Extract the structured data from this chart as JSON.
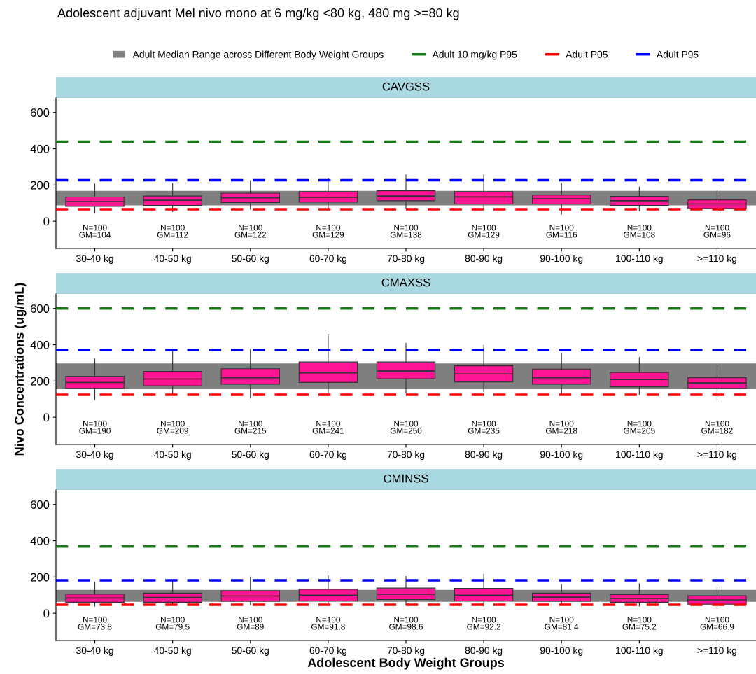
{
  "chart_data": [
    {
      "type": "box",
      "title": "Adolescent adjuvant Mel nivo mono at 6 mg/kg <80 kg, 480 mg >=80 kg",
      "subtitle": "CAVGSS",
      "categories": [
        "30-40 kg",
        "40-50 kg",
        "50-60 kg",
        "60-70 kg",
        "70-80 kg",
        "80-90 kg",
        "90-100 kg",
        "100-110 kg",
        ">=110 kg"
      ],
      "color": "#ff1493",
      "boxes": [
        {
          "low": 47,
          "q1": 82,
          "median": 108,
          "q3": 134,
          "high": 205
        },
        {
          "low": 53,
          "q1": 87,
          "median": 116,
          "q3": 139,
          "high": 208
        },
        {
          "low": 66,
          "q1": 103,
          "median": 129,
          "q3": 155,
          "high": 224
        },
        {
          "low": 66,
          "q1": 105,
          "median": 132,
          "q3": 163,
          "high": 237
        },
        {
          "low": 71,
          "q1": 113,
          "median": 139,
          "q3": 168,
          "high": 255
        },
        {
          "low": 66,
          "q1": 95,
          "median": 134,
          "q3": 163,
          "high": 255
        },
        {
          "low": 39,
          "q1": 95,
          "median": 124,
          "q3": 145,
          "high": 208
        },
        {
          "low": 58,
          "q1": 87,
          "median": 113,
          "q3": 137,
          "high": 189
        },
        {
          "low": 53,
          "q1": 71,
          "median": 95,
          "q3": 118,
          "high": 171
        }
      ],
      "ylim": [
        -150,
        680
      ],
      "yticks": [
        0,
        200,
        400,
        600
      ],
      "bands": [
        {
          "axis": "y",
          "from": 87,
          "to": 168,
          "label": "Adult Median Range across Different Body Weight Groups",
          "color": "#7f7f7f"
        }
      ],
      "ref_lines": [
        {
          "axis": "y",
          "value": 439,
          "label": "Adult 10 mg/kg P95",
          "color": "#1a7a1a",
          "line_style": "dashed"
        },
        {
          "axis": "y",
          "value": 66,
          "label": "Adult P05",
          "color": "#ff0000",
          "line_style": "dashed"
        },
        {
          "axis": "y",
          "value": 226,
          "label": "Adult P95",
          "color": "#0000ff",
          "line_style": "dashed"
        }
      ],
      "annotations": [
        "N=100\nGM=104",
        "N=100\nGM=112",
        "N=100\nGM=122",
        "N=100\nGM=129",
        "N=100\nGM=138",
        "N=100\nGM=129",
        "N=100\nGM=116",
        "N=100\nGM=108",
        "N=100\nGM=96"
      ],
      "legend": "top",
      "grid": false
    },
    {
      "type": "box",
      "subtitle": "CMAXSS",
      "ylabel": "Nivo Concentrations (ug/mL)",
      "categories": [
        "30-40 kg",
        "40-50 kg",
        "50-60 kg",
        "60-70 kg",
        "70-80 kg",
        "80-90 kg",
        "90-100 kg",
        "100-110 kg",
        ">=110 kg"
      ],
      "color": "#ff1493",
      "boxes": [
        {
          "low": 97,
          "q1": 158,
          "median": 192,
          "q3": 226,
          "high": 321
        },
        {
          "low": 124,
          "q1": 174,
          "median": 211,
          "q3": 253,
          "high": 368
        },
        {
          "low": 108,
          "q1": 182,
          "median": 218,
          "q3": 268,
          "high": 374
        },
        {
          "low": 124,
          "q1": 192,
          "median": 245,
          "q3": 305,
          "high": 458
        },
        {
          "low": 134,
          "q1": 213,
          "median": 255,
          "q3": 305,
          "high": 408
        },
        {
          "low": 142,
          "q1": 195,
          "median": 239,
          "q3": 284,
          "high": 397
        },
        {
          "low": 132,
          "q1": 182,
          "median": 218,
          "q3": 266,
          "high": 355
        },
        {
          "low": 124,
          "q1": 168,
          "median": 208,
          "q3": 247,
          "high": 329
        },
        {
          "low": 95,
          "q1": 158,
          "median": 189,
          "q3": 218,
          "high": 289
        }
      ],
      "ylim": [
        -150,
        680
      ],
      "yticks": [
        0,
        200,
        400,
        600
      ],
      "bands": [
        {
          "axis": "y",
          "from": 155,
          "to": 297,
          "color": "#7f7f7f"
        }
      ],
      "ref_lines": [
        {
          "axis": "y",
          "value": 600,
          "color": "#1a7a1a",
          "line_style": "dashed"
        },
        {
          "axis": "y",
          "value": 124,
          "color": "#ff0000",
          "line_style": "dashed"
        },
        {
          "axis": "y",
          "value": 371,
          "color": "#0000ff",
          "line_style": "dashed"
        }
      ],
      "annotations": [
        "N=100\nGM=190",
        "N=100\nGM=209",
        "N=100\nGM=215",
        "N=100\nGM=241",
        "N=100\nGM=250",
        "N=100\nGM=235",
        "N=100\nGM=218",
        "N=100\nGM=205",
        "N=100\nGM=182"
      ],
      "grid": false
    },
    {
      "type": "box",
      "subtitle": "CMINSS",
      "xlabel": "Adolescent Body Weight Groups",
      "categories": [
        "30-40 kg",
        "40-50 kg",
        "50-60 kg",
        "60-70 kg",
        "70-80 kg",
        "80-90 kg",
        "90-100 kg",
        "100-110 kg",
        ">=110 kg"
      ],
      "color": "#ff1493",
      "boxes": [
        {
          "low": 39,
          "q1": 61,
          "median": 84,
          "q3": 105,
          "high": 171
        },
        {
          "low": 45,
          "q1": 61,
          "median": 87,
          "q3": 111,
          "high": 182
        },
        {
          "low": 45,
          "q1": 66,
          "median": 95,
          "q3": 124,
          "high": 200
        },
        {
          "low": 45,
          "q1": 68,
          "median": 100,
          "q3": 132,
          "high": 208
        },
        {
          "low": 45,
          "q1": 76,
          "median": 105,
          "q3": 139,
          "high": 203
        },
        {
          "low": 39,
          "q1": 68,
          "median": 100,
          "q3": 137,
          "high": 216
        },
        {
          "low": 47,
          "q1": 66,
          "median": 89,
          "q3": 111,
          "high": 158
        },
        {
          "low": 39,
          "q1": 61,
          "median": 82,
          "q3": 103,
          "high": 163
        },
        {
          "low": 26,
          "q1": 50,
          "median": 74,
          "q3": 97,
          "high": 142
        }
      ],
      "ylim": [
        -150,
        680
      ],
      "yticks": [
        0,
        200,
        400,
        600
      ],
      "bands": [
        {
          "axis": "y",
          "from": 63,
          "to": 129,
          "color": "#7f7f7f"
        }
      ],
      "ref_lines": [
        {
          "axis": "y",
          "value": 368,
          "color": "#1a7a1a",
          "line_style": "dashed"
        },
        {
          "axis": "y",
          "value": 47,
          "color": "#ff0000",
          "line_style": "dashed"
        },
        {
          "axis": "y",
          "value": 182,
          "color": "#0000ff",
          "line_style": "dashed"
        }
      ],
      "annotations": [
        "N=100\nGM=73.8",
        "N=100\nGM=79.5",
        "N=100\nGM=89",
        "N=100\nGM=91.8",
        "N=100\nGM=98.6",
        "N=100\nGM=92.2",
        "N=100\nGM=81.4",
        "N=100\nGM=75.2",
        "N=100\nGM=66.9"
      ],
      "grid": false
    }
  ]
}
